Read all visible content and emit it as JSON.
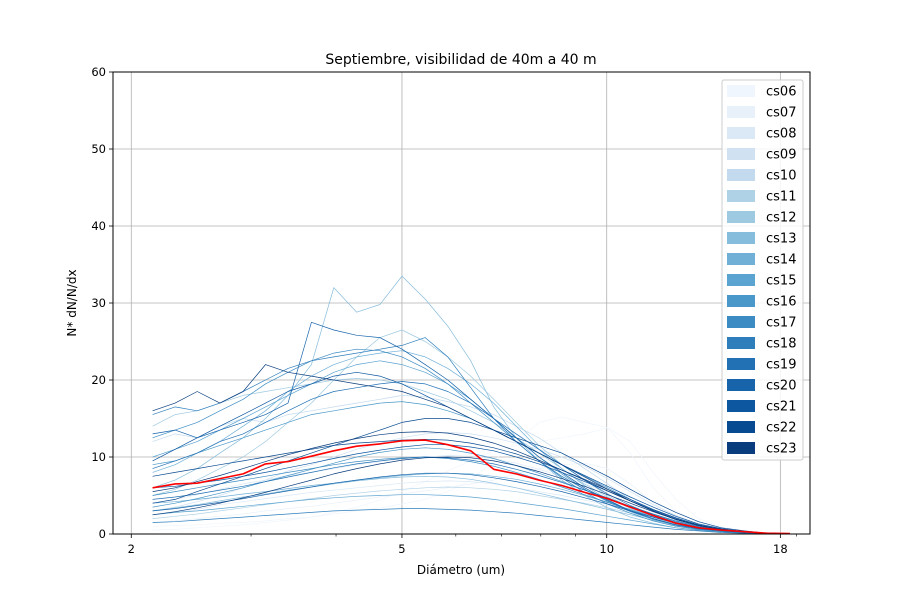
{
  "chart_data": {
    "type": "line",
    "title": "Septiembre, visibilidad de 40m a 40 m",
    "xlabel": "Diámetro (um)",
    "ylabel": "N* dN/N/dx",
    "xscale": "log",
    "xlim": [
      1.88,
      19.9
    ],
    "ylim": [
      0,
      60
    ],
    "x_ticks": [
      2,
      5,
      10,
      18
    ],
    "y_ticks": [
      0,
      10,
      20,
      30,
      40,
      50,
      60
    ],
    "grid": true,
    "legend_placement": "top-right",
    "x": [
      2.15,
      2.32,
      2.5,
      2.7,
      2.92,
      3.15,
      3.4,
      3.68,
      3.97,
      4.29,
      4.64,
      5.0,
      5.41,
      5.84,
      6.31,
      6.82,
      7.36,
      7.95,
      8.59,
      9.28,
      10.03,
      10.83,
      11.7,
      12.64,
      13.65,
      14.75,
      15.93,
      17.2,
      18.6
    ],
    "series": [
      {
        "name": "cs06",
        "color": "#f0f6fd"
      },
      {
        "name": "cs07",
        "color": "#e8f1fa"
      },
      {
        "name": "cs08",
        "color": "#dbe9f6"
      },
      {
        "name": "cs09",
        "color": "#d0e1f2"
      },
      {
        "name": "cs10",
        "color": "#c3daee"
      },
      {
        "name": "cs11",
        "color": "#b0d2e7"
      },
      {
        "name": "cs12",
        "color": "#9ecae1"
      },
      {
        "name": "cs13",
        "color": "#87bddc"
      },
      {
        "name": "cs14",
        "color": "#70b0d7"
      },
      {
        "name": "cs15",
        "color": "#5ba3d0"
      },
      {
        "name": "cs16",
        "color": "#4a98c9"
      },
      {
        "name": "cs17",
        "color": "#3c8cc3"
      },
      {
        "name": "cs18",
        "color": "#2e7ebc"
      },
      {
        "name": "cs19",
        "color": "#2271b5"
      },
      {
        "name": "cs20",
        "color": "#1764ab"
      },
      {
        "name": "cs21",
        "color": "#0d57a1"
      },
      {
        "name": "cs22",
        "color": "#084a91"
      },
      {
        "name": "cs23",
        "color": "#083c7d"
      }
    ],
    "mean_line": {
      "color": "#ff0000",
      "values": [
        6.0,
        6.5,
        6.6,
        7.2,
        7.8,
        9.1,
        9.4,
        10.1,
        10.8,
        11.4,
        11.7,
        12.1,
        12.2,
        11.6,
        10.8,
        8.4,
        7.8,
        7.0,
        6.3,
        5.4,
        4.6,
        3.5,
        2.4,
        1.4,
        0.8,
        0.5,
        0.3,
        0.1,
        0.05
      ]
    },
    "thin_lines": [
      {
        "color": "#f0f6fd",
        "values": [
          1.0,
          1.1,
          1.2,
          1.4,
          1.5,
          1.7,
          2.0,
          2.2,
          2.6,
          3.0,
          3.4,
          3.9,
          4.5,
          5.5,
          7.0,
          9.5,
          12.0,
          14.5,
          15.2,
          14.5,
          13.8,
          10.5,
          6.0,
          3.0,
          1.5,
          0.8,
          0.4,
          0.2,
          0.1
        ]
      },
      {
        "color": "#f0f6fd",
        "values": [
          0.5,
          0.6,
          0.8,
          1.0,
          1.2,
          1.5,
          1.8,
          2.2,
          2.8,
          3.5,
          4.4,
          5.5,
          6.8,
          8.2,
          9.5,
          10.8,
          11.5,
          12.0,
          12.5,
          13.0,
          13.8,
          12.0,
          8.0,
          4.5,
          2.0,
          0.9,
          0.4,
          0.2,
          0.05
        ]
      },
      {
        "color": "#e8f1fa",
        "values": [
          1.5,
          1.7,
          2.0,
          2.3,
          2.6,
          3.0,
          3.3,
          3.6,
          4.0,
          4.4,
          4.8,
          5.2,
          5.6,
          6.0,
          6.5,
          7.0,
          7.8,
          8.5,
          9.0,
          9.2,
          8.5,
          6.5,
          4.0,
          2.2,
          1.0,
          0.5,
          0.3,
          0.1,
          0.05
        ]
      },
      {
        "color": "#dbe9f6",
        "values": [
          2.5,
          2.8,
          3.2,
          3.8,
          4.2,
          4.6,
          5.0,
          5.4,
          5.7,
          6.0,
          6.3,
          6.6,
          6.8,
          6.9,
          6.8,
          6.5,
          6.0,
          5.5,
          5.0,
          4.4,
          3.8,
          3.0,
          2.2,
          1.5,
          0.9,
          0.5,
          0.3,
          0.1,
          0.05
        ]
      },
      {
        "color": "#dbe9f6",
        "values": [
          4.0,
          4.5,
          5.1,
          5.8,
          6.5,
          7.0,
          7.6,
          8.0,
          8.5,
          9.0,
          9.4,
          9.8,
          10.0,
          10.2,
          10.1,
          9.8,
          9.2,
          8.4,
          7.5,
          6.5,
          5.5,
          4.3,
          3.2,
          2.1,
          1.2,
          0.6,
          0.3,
          0.1,
          0.05
        ]
      },
      {
        "color": "#d0e1f2",
        "values": [
          3.0,
          3.5,
          4.2,
          5.0,
          6.0,
          7.0,
          8.2,
          9.0,
          10.0,
          11.0,
          11.8,
          12.5,
          13.0,
          13.2,
          13.0,
          12.5,
          11.8,
          11.0,
          10.0,
          8.8,
          7.2,
          5.5,
          3.8,
          2.4,
          1.3,
          0.7,
          0.3,
          0.1,
          0.05
        ]
      },
      {
        "color": "#c3daee",
        "values": [
          12.0,
          13.0,
          12.5,
          14.0,
          15.0,
          14.5,
          15.5,
          16.0,
          16.5,
          17.0,
          17.5,
          18.0,
          17.8,
          17.2,
          16.5,
          15.5,
          14.0,
          12.5,
          10.5,
          8.5,
          6.5,
          4.5,
          3.0,
          1.8,
          1.0,
          0.5,
          0.3,
          0.1,
          0.05
        ]
      },
      {
        "color": "#b0d2e7",
        "values": [
          2.0,
          2.3,
          2.6,
          3.0,
          3.4,
          3.8,
          4.2,
          4.6,
          5.0,
          5.3,
          5.6,
          5.8,
          6.0,
          6.1,
          6.0,
          5.8,
          5.5,
          5.0,
          4.5,
          4.0,
          3.4,
          2.7,
          2.0,
          1.3,
          0.8,
          0.4,
          0.2,
          0.1,
          0.05
        ]
      },
      {
        "color": "#9ecae1",
        "values": [
          5.0,
          5.8,
          7.0,
          8.5,
          10.0,
          12.0,
          14.5,
          17.0,
          20.0,
          23.0,
          25.5,
          26.5,
          25.0,
          23.0,
          20.5,
          17.5,
          14.5,
          11.5,
          9.0,
          7.0,
          5.0,
          3.4,
          2.2,
          1.3,
          0.7,
          0.4,
          0.2,
          0.1,
          0.05
        ]
      },
      {
        "color": "#9ecae1",
        "values": [
          14.0,
          15.5,
          16.0,
          17.0,
          18.0,
          18.5,
          19.0,
          19.5,
          20.0,
          20.2,
          20.0,
          19.5,
          18.5,
          17.5,
          16.0,
          14.5,
          12.5,
          10.5,
          8.5,
          6.5,
          4.8,
          3.3,
          2.2,
          1.3,
          0.7,
          0.4,
          0.2,
          0.1,
          0.05
        ]
      },
      {
        "color": "#87bddc",
        "values": [
          6.0,
          7.0,
          8.5,
          10.5,
          12.5,
          15.0,
          18.0,
          22.0,
          32.0,
          28.8,
          29.8,
          33.5,
          30.5,
          27.0,
          22.5,
          16.5,
          12.5,
          9.5,
          7.0,
          5.0,
          3.4,
          2.2,
          1.4,
          0.8,
          0.5,
          0.3,
          0.1,
          0.05,
          0.02
        ]
      },
      {
        "color": "#87bddc",
        "values": [
          3.0,
          3.4,
          3.8,
          4.3,
          4.8,
          5.2,
          5.7,
          6.1,
          6.5,
          6.9,
          7.2,
          7.4,
          7.5,
          7.4,
          7.1,
          6.6,
          6.0,
          5.3,
          4.6,
          3.9,
          3.2,
          2.5,
          1.8,
          1.2,
          0.7,
          0.4,
          0.2,
          0.1,
          0.05
        ]
      },
      {
        "color": "#70b0d7",
        "values": [
          8.0,
          9.0,
          10.5,
          12.0,
          14.0,
          16.0,
          18.5,
          20.5,
          22.0,
          23.0,
          23.5,
          23.8,
          23.0,
          21.5,
          19.5,
          17.0,
          14.0,
          11.0,
          8.5,
          6.3,
          4.5,
          3.0,
          1.9,
          1.1,
          0.6,
          0.3,
          0.2,
          0.1,
          0.05
        ]
      },
      {
        "color": "#70b0d7",
        "values": [
          4.0,
          4.2,
          4.5,
          4.8,
          5.2,
          5.5,
          5.9,
          6.3,
          6.6,
          7.0,
          7.3,
          7.6,
          7.8,
          7.9,
          7.8,
          7.5,
          7.1,
          6.5,
          5.8,
          5.0,
          4.1,
          3.2,
          2.3,
          1.5,
          0.9,
          0.5,
          0.3,
          0.1,
          0.05
        ]
      },
      {
        "color": "#5ba3d0",
        "values": [
          10.0,
          11.0,
          12.0,
          13.5,
          15.0,
          16.5,
          18.0,
          19.5,
          21.0,
          22.0,
          22.5,
          22.0,
          21.0,
          19.5,
          17.5,
          15.0,
          12.5,
          10.0,
          7.8,
          5.8,
          4.2,
          2.9,
          1.9,
          1.1,
          0.6,
          0.3,
          0.2,
          0.1,
          0.05
        ]
      },
      {
        "color": "#5ba3d0",
        "values": [
          2.5,
          2.8,
          3.0,
          3.3,
          3.6,
          3.9,
          4.2,
          4.5,
          4.7,
          4.9,
          5.0,
          5.1,
          5.1,
          5.0,
          4.8,
          4.5,
          4.1,
          3.7,
          3.3,
          2.8,
          2.3,
          1.8,
          1.3,
          0.8,
          0.5,
          0.3,
          0.1,
          0.05,
          0.02
        ]
      },
      {
        "color": "#4a98c9",
        "values": [
          9.0,
          9.5,
          10.5,
          11.5,
          12.5,
          13.5,
          14.5,
          15.5,
          16.0,
          16.5,
          17.0,
          17.2,
          16.8,
          16.0,
          15.0,
          13.5,
          12.0,
          10.5,
          9.0,
          7.5,
          6.0,
          4.5,
          3.0,
          1.9,
          1.1,
          0.6,
          0.3,
          0.1,
          0.05
        ]
      },
      {
        "color": "#4a98c9",
        "values": [
          3.5,
          4.0,
          4.6,
          5.3,
          6.0,
          6.8,
          7.6,
          8.4,
          9.2,
          10.0,
          10.6,
          11.0,
          11.2,
          11.0,
          10.5,
          9.8,
          8.9,
          7.9,
          6.8,
          5.7,
          4.6,
          3.5,
          2.5,
          1.6,
          0.9,
          0.5,
          0.3,
          0.1,
          0.05
        ]
      },
      {
        "color": "#3c8cc3",
        "values": [
          12.5,
          13.5,
          14.5,
          16.0,
          17.5,
          19.5,
          21.0,
          22.5,
          23.5,
          24.0,
          23.8,
          23.0,
          21.5,
          19.5,
          17.0,
          14.5,
          12.0,
          9.5,
          7.3,
          5.4,
          3.9,
          2.7,
          1.7,
          1.0,
          0.6,
          0.3,
          0.2,
          0.1,
          0.05
        ]
      },
      {
        "color": "#3c8cc3",
        "values": [
          5.0,
          5.5,
          6.0,
          6.5,
          7.0,
          7.5,
          8.0,
          8.5,
          9.0,
          9.4,
          9.7,
          9.9,
          10.0,
          9.8,
          9.4,
          8.8,
          8.0,
          7.1,
          6.1,
          5.1,
          4.1,
          3.1,
          2.2,
          1.4,
          0.8,
          0.5,
          0.2,
          0.1,
          0.05
        ]
      },
      {
        "color": "#2e7ebc",
        "values": [
          15.5,
          16.5,
          16.0,
          17.0,
          18.5,
          20.0,
          21.5,
          22.5,
          23.0,
          23.5,
          24.0,
          24.5,
          25.5,
          23.0,
          19.0,
          15.0,
          12.0,
          9.5,
          7.5,
          5.8,
          4.3,
          3.0,
          2.0,
          1.2,
          0.7,
          0.4,
          0.2,
          0.1,
          0.05
        ]
      },
      {
        "color": "#2e7ebc",
        "values": [
          1.5,
          1.6,
          1.8,
          2.0,
          2.2,
          2.4,
          2.6,
          2.8,
          3.0,
          3.1,
          3.2,
          3.3,
          3.3,
          3.2,
          3.1,
          2.9,
          2.7,
          2.4,
          2.1,
          1.8,
          1.5,
          1.2,
          0.9,
          0.6,
          0.4,
          0.2,
          0.1,
          0.05,
          0.02
        ]
      },
      {
        "color": "#2271b5",
        "values": [
          8.5,
          9.5,
          10.5,
          12.0,
          13.0,
          14.5,
          16.0,
          17.5,
          18.5,
          19.0,
          19.5,
          19.8,
          19.5,
          18.5,
          17.0,
          15.0,
          13.0,
          11.0,
          9.0,
          7.0,
          5.2,
          3.7,
          2.5,
          1.5,
          0.9,
          0.5,
          0.2,
          0.1,
          0.05
        ]
      },
      {
        "color": "#2271b5",
        "values": [
          4.5,
          4.8,
          5.2,
          5.7,
          6.2,
          6.8,
          7.4,
          8.0,
          8.6,
          9.1,
          9.5,
          9.8,
          10.0,
          9.9,
          9.6,
          9.1,
          8.4,
          7.6,
          6.7,
          5.7,
          4.7,
          3.6,
          2.6,
          1.7,
          1.0,
          0.5,
          0.3,
          0.1,
          0.05
        ]
      },
      {
        "color": "#1764ab",
        "values": [
          13.0,
          13.5,
          12.5,
          13.5,
          14.5,
          15.5,
          17.0,
          27.5,
          26.5,
          25.8,
          25.5,
          24.0,
          22.0,
          20.0,
          17.5,
          15.0,
          12.5,
          10.0,
          8.0,
          6.0,
          4.4,
          3.0,
          2.0,
          1.2,
          0.7,
          0.4,
          0.2,
          0.1,
          0.05
        ]
      },
      {
        "color": "#1764ab",
        "values": [
          3.0,
          3.3,
          3.7,
          4.1,
          4.6,
          5.1,
          5.6,
          6.1,
          6.6,
          7.0,
          7.4,
          7.7,
          7.9,
          7.9,
          7.7,
          7.3,
          6.8,
          6.2,
          5.5,
          4.7,
          3.9,
          3.0,
          2.2,
          1.4,
          0.8,
          0.5,
          0.2,
          0.1,
          0.05
        ]
      },
      {
        "color": "#0d57a1",
        "values": [
          9.5,
          11.0,
          12.5,
          14.0,
          15.5,
          17.0,
          18.5,
          19.5,
          20.5,
          21.0,
          20.5,
          19.5,
          18.0,
          16.5,
          15.0,
          13.5,
          12.0,
          10.5,
          9.0,
          7.6,
          6.2,
          4.8,
          3.5,
          2.3,
          1.3,
          0.7,
          0.3,
          0.1,
          0.05
        ]
      },
      {
        "color": "#0d57a1",
        "values": [
          6.0,
          6.2,
          6.6,
          7.0,
          7.5,
          8.0,
          8.6,
          9.2,
          9.8,
          10.4,
          10.9,
          11.3,
          11.6,
          11.6,
          11.3,
          10.8,
          10.0,
          9.1,
          8.0,
          6.8,
          5.6,
          4.3,
          3.1,
          2.0,
          1.1,
          0.6,
          0.3,
          0.1,
          0.05
        ]
      },
      {
        "color": "#084a91",
        "values": [
          4.0,
          4.5,
          5.5,
          6.5,
          7.5,
          8.5,
          9.5,
          10.5,
          11.5,
          12.5,
          13.5,
          14.5,
          15.0,
          15.0,
          14.5,
          13.5,
          12.5,
          11.5,
          10.5,
          9.0,
          7.5,
          5.8,
          4.2,
          2.8,
          1.6,
          0.8,
          0.4,
          0.1,
          0.05
        ]
      },
      {
        "color": "#084a91",
        "values": [
          7.5,
          8.0,
          8.5,
          9.0,
          9.5,
          10.0,
          10.5,
          11.0,
          11.5,
          11.8,
          12.0,
          12.2,
          12.3,
          12.2,
          11.8,
          11.2,
          10.4,
          9.4,
          8.3,
          7.1,
          5.8,
          4.5,
          3.2,
          2.1,
          1.2,
          0.6,
          0.3,
          0.1,
          0.05
        ]
      },
      {
        "color": "#083c7d",
        "values": [
          16.0,
          17.0,
          18.5,
          17.0,
          18.5,
          22.0,
          21.0,
          20.5,
          20.0,
          19.5,
          19.0,
          18.5,
          17.5,
          16.5,
          15.0,
          13.5,
          12.0,
          10.5,
          9.0,
          7.4,
          5.8,
          4.3,
          3.0,
          1.9,
          1.1,
          0.6,
          0.3,
          0.1,
          0.05
        ]
      },
      {
        "color": "#083c7d",
        "values": [
          5.5,
          6.0,
          6.8,
          7.6,
          8.5,
          9.4,
          10.3,
          11.1,
          11.8,
          12.4,
          12.9,
          13.2,
          13.3,
          13.1,
          12.6,
          11.8,
          10.8,
          9.6,
          8.3,
          7.0,
          5.6,
          4.3,
          3.0,
          1.9,
          1.1,
          0.6,
          0.3,
          0.1,
          0.05
        ]
      },
      {
        "color": "#083c7d",
        "values": [
          2.5,
          2.9,
          3.4,
          4.0,
          4.7,
          5.4,
          6.2,
          7.0,
          7.8,
          8.5,
          9.1,
          9.6,
          9.9,
          10.0,
          9.9,
          9.5,
          8.9,
          8.1,
          7.2,
          6.2,
          5.1,
          4.0,
          2.9,
          1.9,
          1.1,
          0.6,
          0.3,
          0.1,
          0.05
        ]
      }
    ]
  }
}
